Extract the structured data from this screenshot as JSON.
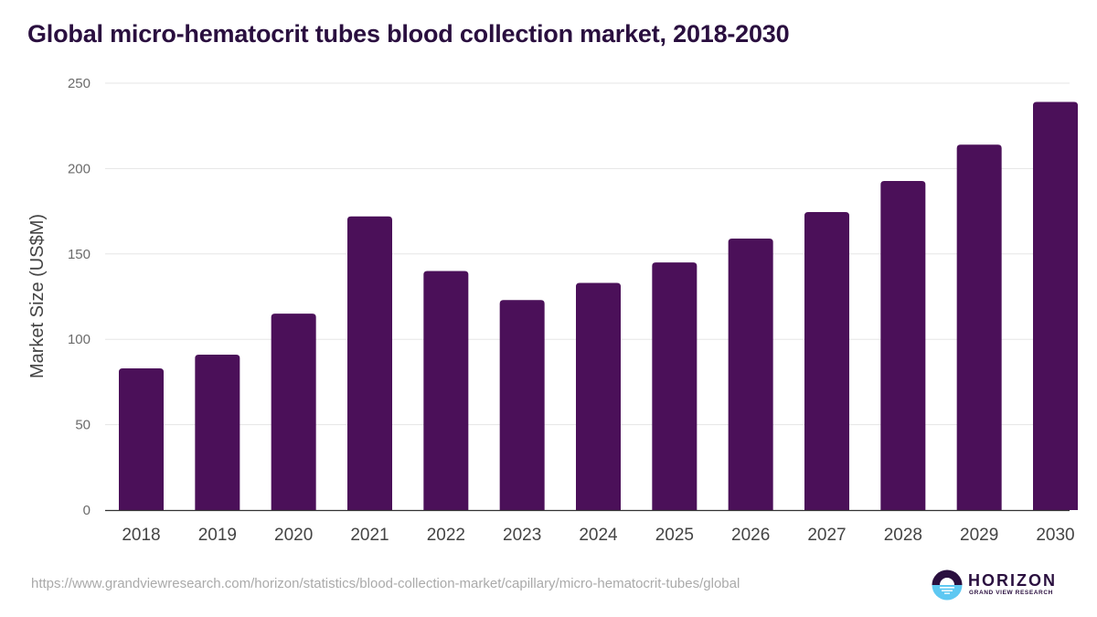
{
  "title": "Global micro-hematocrit tubes blood collection market, 2018-2030",
  "source_url": "https://www.grandviewresearch.com/horizon/statistics/blood-collection-market/capillary/micro-hematocrit-tubes/global",
  "logo": {
    "name": "HORIZON",
    "subtitle": "GRAND VIEW RESEARCH"
  },
  "colors": {
    "bar": "#4b1059",
    "title": "#2a0f3f",
    "grid": "#e5e5e5",
    "logo_top": "#2a0f3f",
    "logo_bottom": "#5ec8f2"
  },
  "chart_data": {
    "type": "bar",
    "title": "Global micro-hematocrit tubes blood collection market, 2018-2030",
    "xlabel": "",
    "ylabel": "Market Size (US$M)",
    "ylim": [
      0,
      250
    ],
    "yticks": [
      "0",
      "50",
      "100",
      "150",
      "200",
      "250"
    ],
    "ytick_values": [
      0,
      50,
      100,
      150,
      200,
      250
    ],
    "grid": true,
    "categories": [
      "2018",
      "2019",
      "2020",
      "2021",
      "2022",
      "2023",
      "2024",
      "2025",
      "2026",
      "2027",
      "2028",
      "2029",
      "2030"
    ],
    "values": [
      83,
      91,
      115,
      172,
      140,
      123,
      133,
      145,
      159,
      174.5,
      192.7,
      214,
      239
    ]
  }
}
